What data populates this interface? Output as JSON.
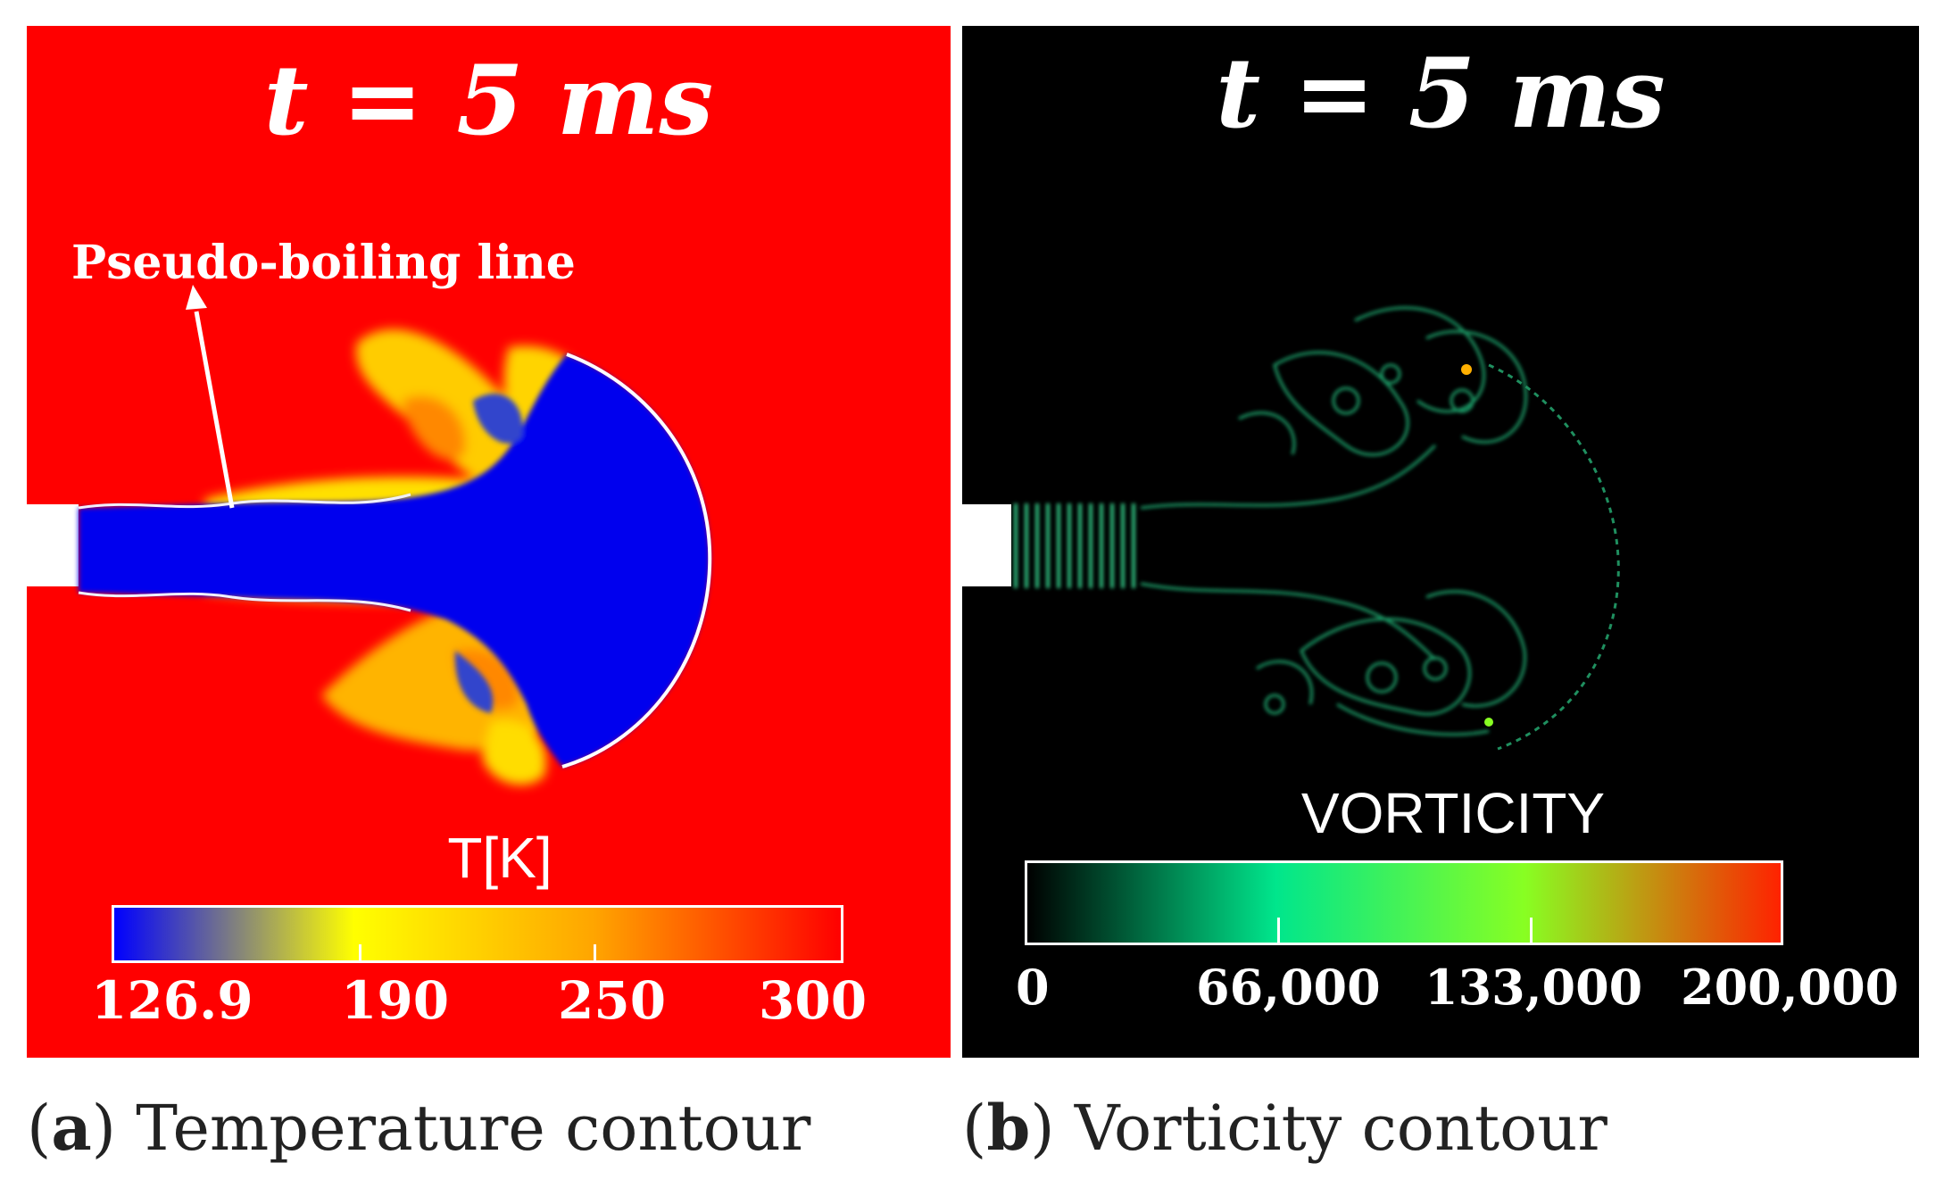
{
  "panel_a": {
    "title": "t = 5 ms",
    "annotation": "Pseudo-boiling line",
    "colorbar": {
      "title": "T[K]",
      "ticks": [
        "126.9",
        "190",
        "250",
        "300"
      ],
      "colors": [
        "#0000ff",
        "#ffff00",
        "#ffa500",
        "#ff0000"
      ]
    },
    "caption_letter": "a",
    "caption_text": "Temperature contour"
  },
  "panel_b": {
    "title": "t = 5 ms",
    "colorbar": {
      "title": "VORTICITY",
      "ticks": [
        "0",
        "66,000",
        "133,000",
        "200,000"
      ],
      "colors": [
        "#000000",
        "#00e68c",
        "#88ff22",
        "#ff2200"
      ]
    },
    "caption_letter": "b",
    "caption_text": "Vorticity contour"
  }
}
